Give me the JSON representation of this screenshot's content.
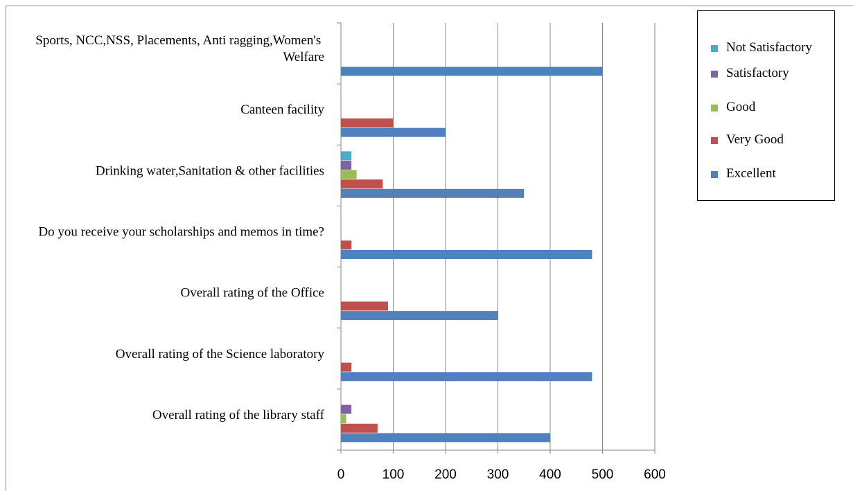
{
  "chart_data": {
    "type": "bar",
    "orientation": "horizontal",
    "categories": [
      "Overall rating of the library staff",
      "Overall rating of the Science laboratory",
      "Overall rating of the Office",
      "Do you receive your scholarships and memos in time?",
      "Drinking water,Sanitation & other facilities",
      "Canteen facility",
      "Sports, NCC,NSS, Placements, Anti ragging,Women's Welfare"
    ],
    "series": [
      {
        "name": "Not Satisfactory",
        "color": "#4bacc6",
        "values": [
          0,
          0,
          0,
          0,
          20,
          0,
          0
        ]
      },
      {
        "name": "Satisfactory",
        "color": "#8064a2",
        "values": [
          20,
          0,
          0,
          0,
          20,
          0,
          0
        ]
      },
      {
        "name": "Good",
        "color": "#9bbb59",
        "values": [
          10,
          0,
          0,
          0,
          30,
          0,
          0
        ]
      },
      {
        "name": "Very Good",
        "color": "#c0504d",
        "values": [
          70,
          20,
          90,
          20,
          80,
          100,
          0
        ]
      },
      {
        "name": "Excellent",
        "color": "#4f81bd",
        "values": [
          400,
          480,
          300,
          480,
          350,
          200,
          500
        ]
      }
    ],
    "xlim": [
      0,
      600
    ],
    "xticks": [
      0,
      100,
      200,
      300,
      400,
      500,
      600
    ],
    "grid": true,
    "legend": "right"
  }
}
